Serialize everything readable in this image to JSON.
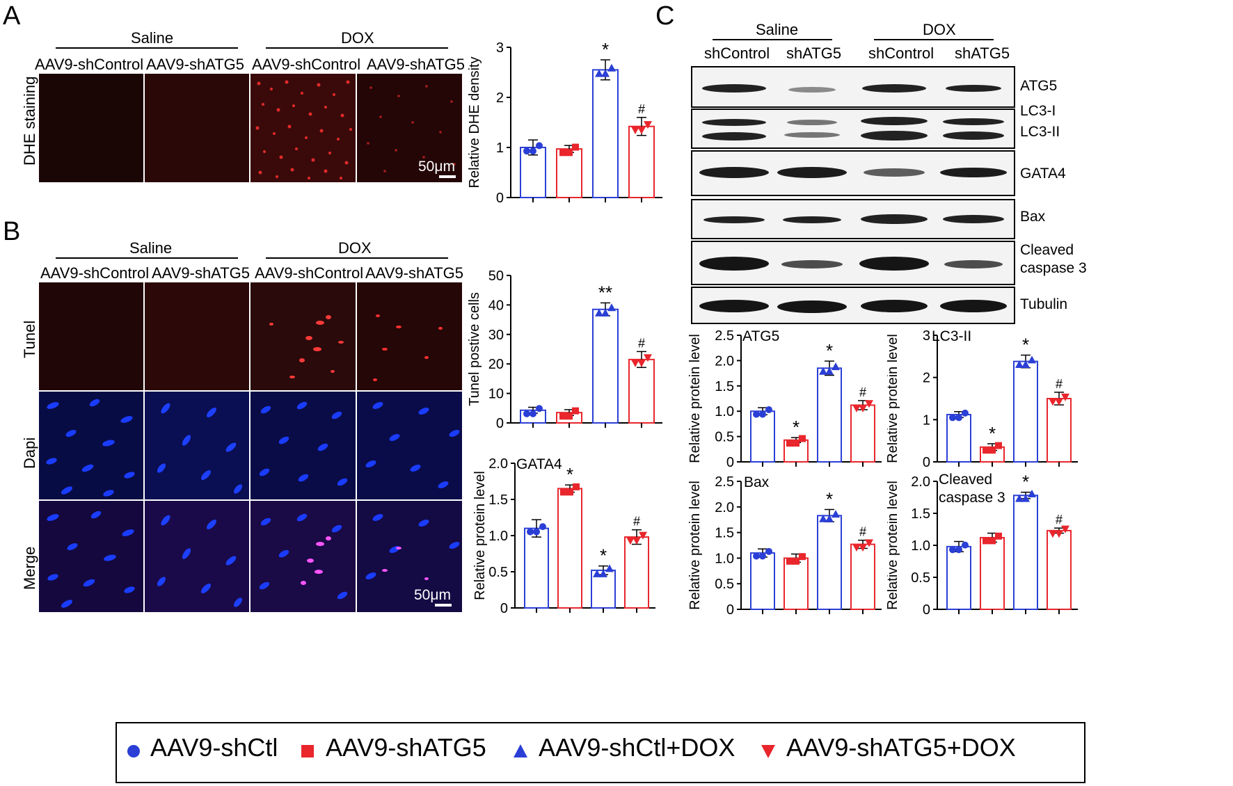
{
  "panels": {
    "a": "A",
    "b": "B",
    "c": "C"
  },
  "panelA": {
    "group_saline": "Saline",
    "group_dox": "DOX",
    "cols": [
      "AAV9-shControl",
      "AAV9-shATG5",
      "AAV9-shControl",
      "AAV9-shATG5"
    ],
    "row_label": "DHE staining",
    "scale": "50μm"
  },
  "panelB": {
    "group_saline": "Saline",
    "group_dox": "DOX",
    "cols": [
      "AAV9-shControl",
      "AAV9-shATG5",
      "AAV9-shControl",
      "AAV9-shATG5"
    ],
    "rows": [
      "Tunel",
      "Dapi",
      "Merge"
    ],
    "scale": "50μm"
  },
  "panelC": {
    "group_saline": "Saline",
    "group_dox": "DOX",
    "cols": [
      "shControl",
      "shATG5",
      "shControl",
      "shATG5"
    ],
    "blots": [
      "ATG5",
      "LC3-I",
      "LC3-II",
      "GATA4",
      "Bax",
      "Cleaved",
      "caspase 3",
      "Tubulin"
    ]
  },
  "colors": {
    "blue": "#2b3fd6",
    "red": "#e8262c"
  },
  "chart_data": [
    {
      "id": "dhe",
      "type": "bar",
      "title": "",
      "ylabel": "Relative DHE density",
      "ylim": [
        0,
        3
      ],
      "yticks": [
        "0",
        "1",
        "2",
        "3"
      ],
      "values": [
        1.0,
        0.97,
        2.55,
        1.42
      ],
      "errors": [
        0.15,
        0.07,
        0.2,
        0.18
      ],
      "marks": [
        "",
        "",
        "*",
        "#"
      ],
      "series": [
        "AAV9-shCtl",
        "AAV9-shATG5",
        "AAV9-shCtl+DOX",
        "AAV9-shATG5+DOX"
      ]
    },
    {
      "id": "tunel",
      "type": "bar",
      "title": "",
      "ylabel": "Tunel postive cells",
      "ylim": [
        0,
        50
      ],
      "yticks": [
        "0",
        "10",
        "20",
        "30",
        "40",
        "50"
      ],
      "values": [
        4.3,
        3.5,
        38.5,
        21.5
      ],
      "errors": [
        1.0,
        1.0,
        2.2,
        2.7
      ],
      "marks": [
        "",
        "",
        "**",
        "#"
      ],
      "series": [
        "AAV9-shCtl",
        "AAV9-shATG5",
        "AAV9-shCtl+DOX",
        "AAV9-shATG5+DOX"
      ]
    },
    {
      "id": "gata4",
      "type": "bar",
      "title": "GATA4",
      "ylabel": "Relative protein level",
      "ylim": [
        0,
        2.0
      ],
      "yticks": [
        "0",
        "0.5",
        "1.0",
        "1.5",
        "2.0"
      ],
      "values": [
        1.1,
        1.65,
        0.52,
        0.98
      ],
      "errors": [
        0.12,
        0.05,
        0.06,
        0.1
      ],
      "marks": [
        "",
        "*",
        "*",
        "#"
      ],
      "series": [
        "AAV9-shCtl",
        "AAV9-shATG5",
        "AAV9-shCtl+DOX",
        "AAV9-shATG5+DOX"
      ]
    },
    {
      "id": "atg5",
      "type": "bar",
      "title": "ATG5",
      "ylabel": "Relative protein level",
      "ylim": [
        0,
        2.5
      ],
      "yticks": [
        "0",
        "0.5",
        "1.0",
        "1.5",
        "2.0",
        "2.5"
      ],
      "values": [
        1.0,
        0.43,
        1.85,
        1.12
      ],
      "errors": [
        0.07,
        0.05,
        0.14,
        0.09
      ],
      "marks": [
        "",
        "*",
        "*",
        "#"
      ],
      "series": [
        "AAV9-shCtl",
        "AAV9-shATG5",
        "AAV9-shCtl+DOX",
        "AAV9-shATG5+DOX"
      ]
    },
    {
      "id": "lc3",
      "type": "bar",
      "title": "LC3-II",
      "ylabel": "Relative protein level",
      "ylim": [
        0,
        3
      ],
      "yticks": [
        "0",
        "1",
        "2",
        "3"
      ],
      "values": [
        1.12,
        0.35,
        2.38,
        1.5
      ],
      "errors": [
        0.07,
        0.08,
        0.15,
        0.15
      ],
      "marks": [
        "",
        "*",
        "*",
        "#"
      ],
      "series": [
        "AAV9-shCtl",
        "AAV9-shATG5",
        "AAV9-shCtl+DOX",
        "AAV9-shATG5+DOX"
      ]
    },
    {
      "id": "bax",
      "type": "bar",
      "title": "Bax",
      "ylabel": "Relative protein level",
      "ylim": [
        0,
        2.5
      ],
      "yticks": [
        "0",
        "0.5",
        "1.0",
        "1.5",
        "2.0",
        "2.5"
      ],
      "values": [
        1.1,
        1.0,
        1.83,
        1.27
      ],
      "errors": [
        0.08,
        0.08,
        0.12,
        0.08
      ],
      "marks": [
        "",
        "",
        "*",
        "#"
      ],
      "series": [
        "AAV9-shCtl",
        "AAV9-shATG5",
        "AAV9-shCtl+DOX",
        "AAV9-shATG5+DOX"
      ]
    },
    {
      "id": "casp3",
      "type": "bar",
      "title": "Cleaved caspase 3",
      "title_lines": [
        "Cleaved",
        "caspase 3"
      ],
      "ylabel": "Relative protein level",
      "ylim": [
        0,
        2.0
      ],
      "yticks": [
        "0",
        "0.5",
        "1.0",
        "1.5",
        "2.0"
      ],
      "values": [
        0.98,
        1.12,
        1.78,
        1.23
      ],
      "errors": [
        0.08,
        0.07,
        0.05,
        0.04
      ],
      "marks": [
        "",
        "",
        "*",
        "#"
      ],
      "series": [
        "AAV9-shCtl",
        "AAV9-shATG5",
        "AAV9-shCtl+DOX",
        "AAV9-shATG5+DOX"
      ]
    }
  ],
  "legend": {
    "items": [
      "AAV9-shCtl",
      "AAV9-shATG5",
      "AAV9-shCtl+DOX",
      "AAV9-shATG5+DOX"
    ]
  }
}
